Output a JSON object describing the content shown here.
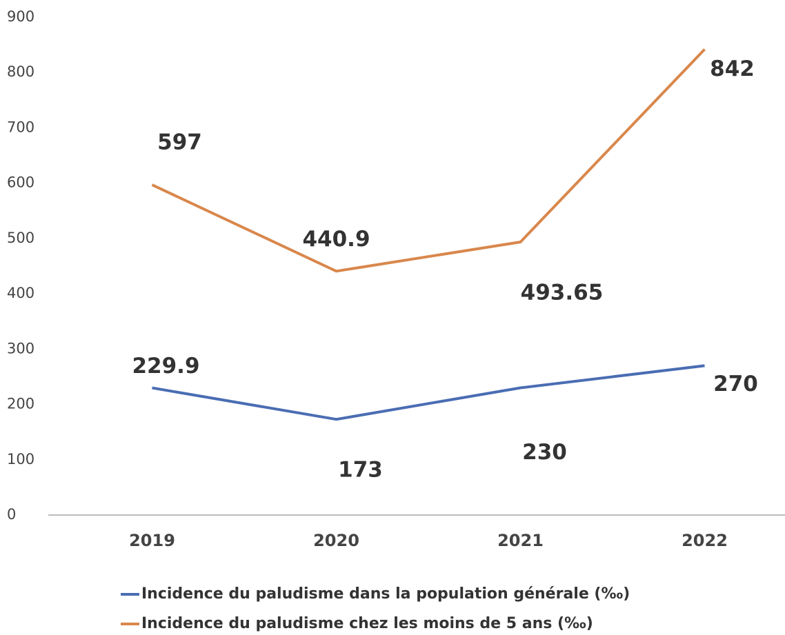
{
  "chart_data": {
    "type": "line",
    "categories": [
      "2019",
      "2020",
      "2021",
      "2022"
    ],
    "series": [
      {
        "name": "Incidence du paludisme dans la population générale (‰)",
        "color": "#4a6db3",
        "values": [
          229.9,
          173,
          230,
          270
        ]
      },
      {
        "name": "Incidence du paludisme chez les moins de 5 ans (‰)",
        "color": "#d9874c",
        "values": [
          597,
          440.9,
          493.65,
          842
        ]
      }
    ],
    "ylim": [
      0,
      900
    ],
    "yticks": [
      0,
      100,
      200,
      300,
      400,
      500,
      600,
      700,
      800,
      900
    ],
    "grid": false,
    "legend": "bottom"
  }
}
